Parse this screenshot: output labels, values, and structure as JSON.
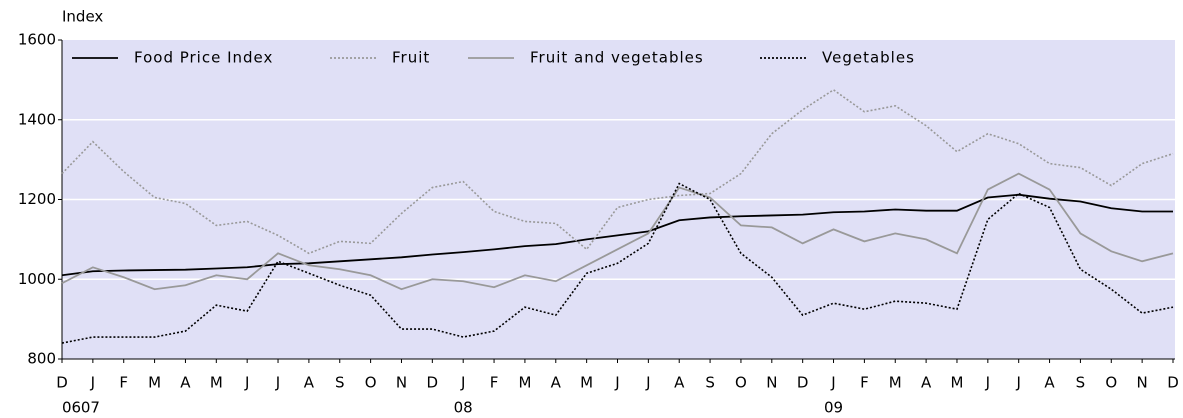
{
  "chart_data": {
    "type": "line",
    "y_label": "Index",
    "categories": [
      "D",
      "J",
      "F",
      "M",
      "A",
      "M",
      "J",
      "J",
      "A",
      "S",
      "O",
      "N",
      "D",
      "J",
      "F",
      "M",
      "A",
      "M",
      "J",
      "J",
      "A",
      "S",
      "O",
      "N",
      "D",
      "J",
      "F",
      "M",
      "A",
      "M",
      "J",
      "J",
      "A",
      "S",
      "O",
      "N",
      "D"
    ],
    "year_labels": [
      "06",
      "07",
      null,
      null,
      null,
      null,
      null,
      null,
      null,
      null,
      null,
      null,
      null,
      "08",
      null,
      null,
      null,
      null,
      null,
      null,
      null,
      null,
      null,
      null,
      null,
      "09",
      null,
      null,
      null,
      null,
      null,
      null,
      null,
      null,
      null,
      null,
      null
    ],
    "ylim": [
      800,
      1600
    ],
    "yticks": [
      800,
      1000,
      1200,
      1400,
      1600
    ],
    "grid": true,
    "background": "#e0e0f6",
    "legend": "top",
    "series": [
      {
        "name": "Food Price Index",
        "color": "#000000",
        "dash": "solid",
        "values": [
          1010,
          1020,
          1022,
          1023,
          1024,
          1027,
          1030,
          1038,
          1040,
          1045,
          1050,
          1055,
          1062,
          1068,
          1075,
          1083,
          1088,
          1100,
          1110,
          1120,
          1148,
          1155,
          1158,
          1160,
          1162,
          1168,
          1170,
          1175,
          1172,
          1172,
          1205,
          1212,
          1202,
          1195,
          1178,
          1170,
          1170
        ]
      },
      {
        "name": "Fruit",
        "color": "#999999",
        "dash": "dotted",
        "values": [
          1265,
          1345,
          1270,
          1205,
          1190,
          1135,
          1145,
          1110,
          1065,
          1095,
          1090,
          1165,
          1230,
          1245,
          1170,
          1145,
          1140,
          1075,
          1180,
          1200,
          1210,
          1215,
          1265,
          1365,
          1425,
          1475,
          1420,
          1435,
          1385,
          1320,
          1365,
          1340,
          1290,
          1280,
          1235,
          1290,
          1315
        ]
      },
      {
        "name": "Fruit and vegetables",
        "color": "#999999",
        "dash": "solid",
        "values": [
          990,
          1030,
          1005,
          975,
          985,
          1010,
          1000,
          1065,
          1035,
          1025,
          1010,
          975,
          1000,
          995,
          980,
          1010,
          995,
          1035,
          1075,
          1115,
          1230,
          1205,
          1135,
          1130,
          1090,
          1125,
          1095,
          1115,
          1100,
          1065,
          1225,
          1265,
          1225,
          1115,
          1070,
          1045,
          1065
        ]
      },
      {
        "name": "Vegetables",
        "color": "#000000",
        "dash": "dotted",
        "values": [
          840,
          855,
          855,
          855,
          870,
          935,
          920,
          1045,
          1015,
          985,
          960,
          875,
          875,
          855,
          870,
          930,
          910,
          1015,
          1040,
          1090,
          1240,
          1200,
          1065,
          1005,
          910,
          940,
          925,
          945,
          940,
          925,
          1150,
          1215,
          1180,
          1025,
          975,
          915,
          930
        ]
      }
    ]
  }
}
